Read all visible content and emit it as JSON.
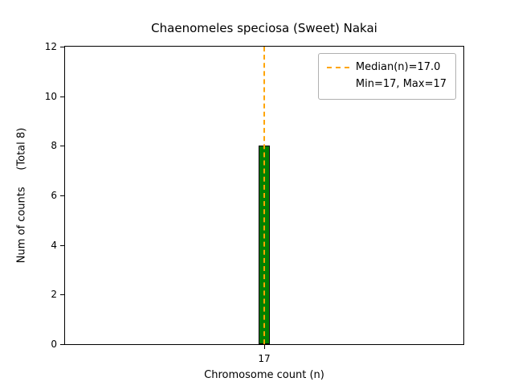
{
  "chart_data": {
    "type": "bar",
    "title": "Chaenomeles speciosa (Sweet) Nakai",
    "xlabel": "Chromosome count (n)",
    "ylabel": "Num of counts     (Total 8)",
    "categories": [
      "17"
    ],
    "values": [
      8
    ],
    "total": 8,
    "ylim": [
      0,
      12
    ],
    "yticks": [
      0,
      2,
      4,
      6,
      8,
      10,
      12
    ],
    "grid": false,
    "bar_color": "#008000",
    "bar_edge_color": "#000000",
    "median_line": {
      "x": "17",
      "value": 17.0,
      "color": "#FFA500",
      "style": "dashed"
    },
    "legend": [
      "Median(n)=17.0",
      "Min=17, Max=17"
    ],
    "legend_position": "upper right",
    "stats": {
      "median": 17.0,
      "min": 17,
      "max": 17
    }
  }
}
